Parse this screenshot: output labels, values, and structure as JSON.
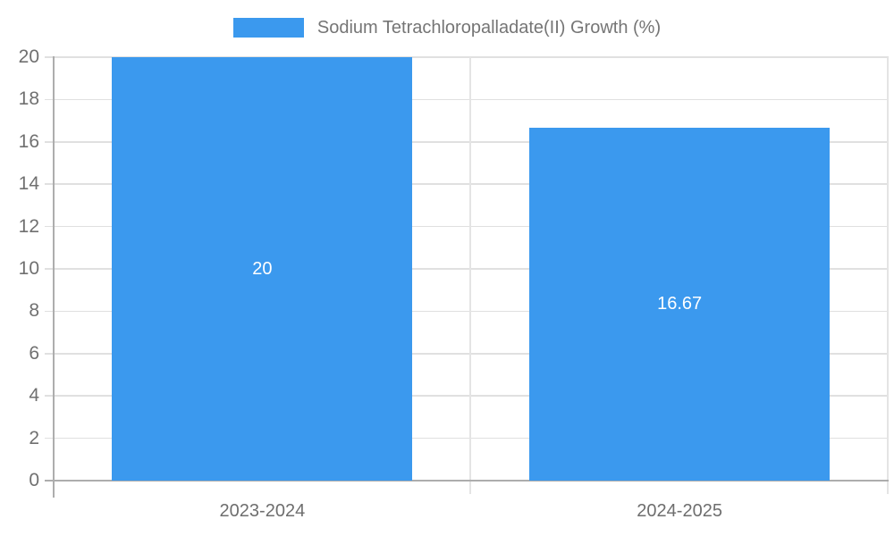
{
  "chart_data": {
    "type": "bar",
    "title": "",
    "legend_position": "top-center",
    "series_name": "Sodium Tetrachloropalladate(II) Growth (%)",
    "categories": [
      "2023-2024",
      "2024-2025"
    ],
    "values": [
      20,
      16.67
    ],
    "value_labels": [
      "20",
      "16.67"
    ],
    "ylim": [
      0,
      20
    ],
    "yticks": [
      0,
      2,
      4,
      6,
      8,
      10,
      12,
      14,
      16,
      18,
      20
    ],
    "grid": true,
    "colors": {
      "bar": "#3b99ee",
      "grid": "#e0e0e0",
      "boundary": "#e4e4e4",
      "axis": "#adadad",
      "tick_label": "#707070",
      "category_label": "#6e6e6e",
      "value_label": "#ffffff",
      "legend_label": "#757575",
      "background": "#ffffff"
    }
  }
}
